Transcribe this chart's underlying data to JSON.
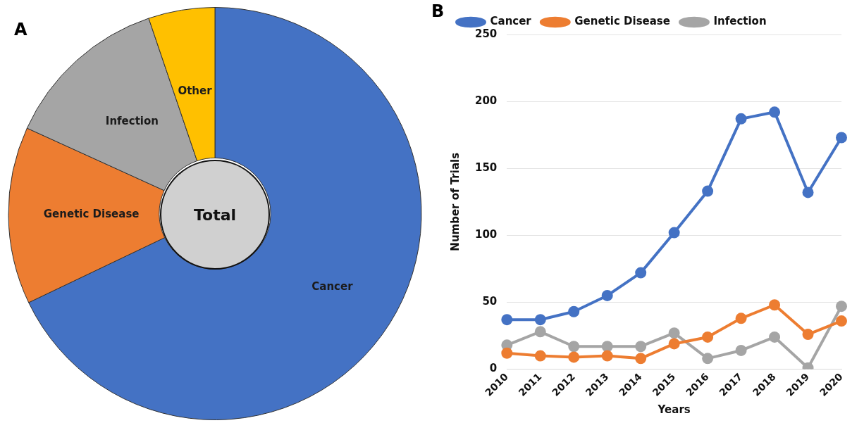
{
  "chart_data": [
    {
      "type": "donut",
      "title": "A",
      "categories": [
        "Cancer",
        "Genetic Disease",
        "Infection",
        "Other"
      ],
      "values": [
        67.9,
        13.9,
        13,
        5.2
      ],
      "colors": [
        "#4472c4",
        "#ed7d31",
        "#a5a5a5",
        "#ffc000"
      ],
      "annotations": [
        "Total"
      ],
      "legend": false
    },
    {
      "type": "line",
      "title": "B",
      "xlabel": "Years",
      "ylabel": "Number of Trials",
      "categories": [
        "2010",
        "2011",
        "2012",
        "2013",
        "2014",
        "2015",
        "2016",
        "2017",
        "2018",
        "2019",
        "2020"
      ],
      "series": [
        {
          "name": "Cancer",
          "color": "#4472c4",
          "values": [
            37,
            37,
            43,
            55,
            72,
            102,
            133,
            187,
            192,
            132,
            173
          ]
        },
        {
          "name": "Genetic Disease",
          "color": "#ed7d31",
          "values": [
            12,
            10,
            9,
            10,
            8,
            19,
            24,
            38,
            48,
            26,
            36
          ]
        },
        {
          "name": "Infection",
          "color": "#a5a5a5",
          "values": [
            18,
            28,
            17,
            17,
            17,
            27,
            8,
            14,
            24,
            1,
            47
          ]
        }
      ],
      "ylim": [
        0,
        250
      ],
      "yticks": [
        0,
        50,
        100,
        150,
        200,
        250
      ],
      "grid": "y",
      "legend": "top left",
      "marker": "circle",
      "line_style": "solid"
    }
  ]
}
